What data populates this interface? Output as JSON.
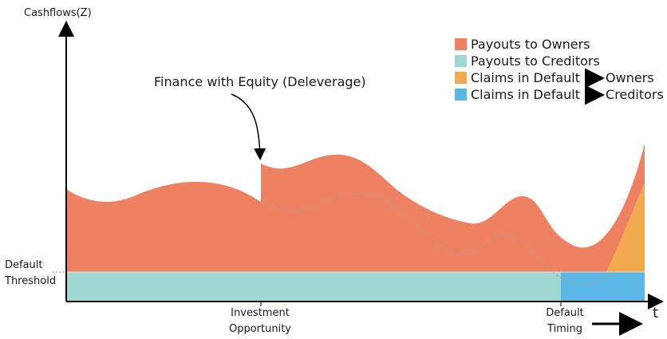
{
  "axes": {
    "y_label": "Cashflows(Z)",
    "x_label": "t"
  },
  "threshold_label": [
    "Default",
    "Threshold"
  ],
  "x_markers": [
    {
      "label": [
        "Investment",
        "Opportunity"
      ]
    },
    {
      "label": [
        "Default",
        "Timing"
      ]
    }
  ],
  "annotation": "Finance with Equity (Deleverage)",
  "legend": [
    {
      "label": "Payouts to Owners",
      "color": "#ef8163"
    },
    {
      "label": "Payouts to Creditors",
      "color": "#9fd8d0"
    },
    {
      "label": "Claims in Default",
      "target": "Owners",
      "color": "#f3a94f"
    },
    {
      "label": "Claims in Default",
      "target": "Creditors",
      "color": "#5bb8e6"
    }
  ]
}
